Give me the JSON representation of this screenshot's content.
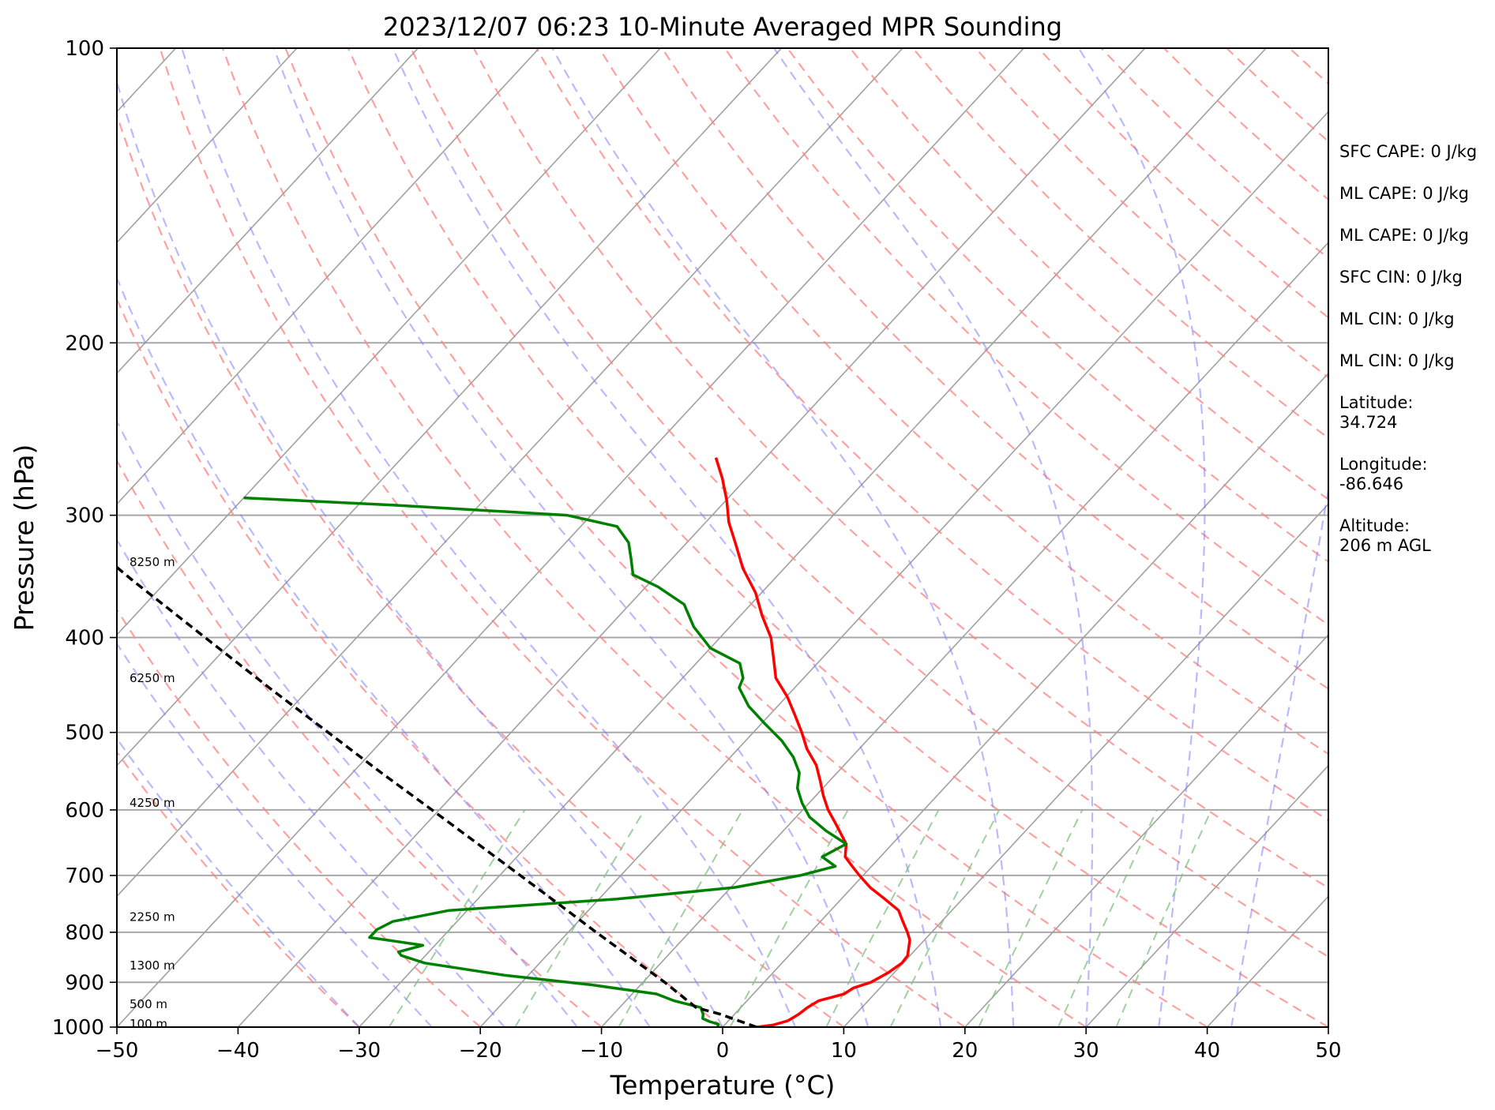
{
  "chart_data": {
    "type": "line",
    "title": "2023/12/07 06:23 10-Minute Averaged MPR Sounding",
    "xlabel": "Temperature (°C)",
    "ylabel": "Pressure (hPa)",
    "xlim": [
      -50,
      50
    ],
    "ylim": [
      1000,
      100
    ],
    "yscale": "log",
    "skew": "skew-T log-P (isotherms slanted to the right)",
    "x_ticks": [
      -50,
      -40,
      -30,
      -20,
      -10,
      0,
      10,
      20,
      30,
      40,
      50
    ],
    "x_tick_labels": [
      "−50",
      "−40",
      "−30",
      "−20",
      "−10",
      "0",
      "10",
      "20",
      "30",
      "40",
      "50"
    ],
    "y_ticks": [
      1000,
      900,
      800,
      700,
      600,
      500,
      400,
      300,
      200,
      100
    ],
    "y_tick_labels": [
      "1000",
      "900",
      "800",
      "700",
      "600",
      "500",
      "400",
      "300",
      "200",
      "100"
    ],
    "grid": true,
    "series": [
      {
        "role": "temperature",
        "color": "#ff0000",
        "points": [
          {
            "p": 1000,
            "t": 2.8
          },
          {
            "p": 995,
            "t": 4.0
          },
          {
            "p": 985,
            "t": 4.9
          },
          {
            "p": 970,
            "t": 5.3
          },
          {
            "p": 955,
            "t": 5.5
          },
          {
            "p": 940,
            "t": 5.9
          },
          {
            "p": 925,
            "t": 7.5
          },
          {
            "p": 912,
            "t": 7.8
          },
          {
            "p": 900,
            "t": 8.8
          },
          {
            "p": 880,
            "t": 9.5
          },
          {
            "p": 860,
            "t": 9.9
          },
          {
            "p": 845,
            "t": 9.8
          },
          {
            "p": 830,
            "t": 9.3
          },
          {
            "p": 815,
            "t": 8.8
          },
          {
            "p": 800,
            "t": 8.0
          },
          {
            "p": 780,
            "t": 6.8
          },
          {
            "p": 760,
            "t": 5.6
          },
          {
            "p": 740,
            "t": 3.6
          },
          {
            "p": 720,
            "t": 1.5
          },
          {
            "p": 700,
            "t": -0.3
          },
          {
            "p": 685,
            "t": -1.6
          },
          {
            "p": 670,
            "t": -2.9
          },
          {
            "p": 650,
            "t": -3.8
          },
          {
            "p": 620,
            "t": -6.2
          },
          {
            "p": 600,
            "t": -7.9
          },
          {
            "p": 580,
            "t": -9.4
          },
          {
            "p": 560,
            "t": -10.8
          },
          {
            "p": 540,
            "t": -12.3
          },
          {
            "p": 520,
            "t": -14.3
          },
          {
            "p": 500,
            "t": -16.0
          },
          {
            "p": 480,
            "t": -17.9
          },
          {
            "p": 460,
            "t": -19.9
          },
          {
            "p": 440,
            "t": -22.3
          },
          {
            "p": 420,
            "t": -24.0
          },
          {
            "p": 400,
            "t": -25.8
          },
          {
            "p": 380,
            "t": -28.2
          },
          {
            "p": 360,
            "t": -30.5
          },
          {
            "p": 340,
            "t": -33.4
          },
          {
            "p": 320,
            "t": -36.0
          },
          {
            "p": 305,
            "t": -38.1
          },
          {
            "p": 290,
            "t": -39.9
          },
          {
            "p": 275,
            "t": -42.0
          },
          {
            "p": 262,
            "t": -44.1
          }
        ]
      },
      {
        "role": "dewpoint",
        "color": "#008000",
        "points": [
          {
            "p": 1000,
            "t": -0.4
          },
          {
            "p": 993,
            "t": -0.6
          },
          {
            "p": 987,
            "t": -1.5
          },
          {
            "p": 980,
            "t": -2.3
          },
          {
            "p": 970,
            "t": -2.6
          },
          {
            "p": 955,
            "t": -3.3
          },
          {
            "p": 940,
            "t": -6.0
          },
          {
            "p": 925,
            "t": -8.0
          },
          {
            "p": 905,
            "t": -14.2
          },
          {
            "p": 885,
            "t": -22.0
          },
          {
            "p": 860,
            "t": -29.5
          },
          {
            "p": 845,
            "t": -32.0
          },
          {
            "p": 838,
            "t": -32.5
          },
          {
            "p": 825,
            "t": -31.0
          },
          {
            "p": 810,
            "t": -36.0
          },
          {
            "p": 795,
            "t": -36.0
          },
          {
            "p": 780,
            "t": -35.3
          },
          {
            "p": 760,
            "t": -31.5
          },
          {
            "p": 740,
            "t": -18.5
          },
          {
            "p": 720,
            "t": -9.7
          },
          {
            "p": 700,
            "t": -5.2
          },
          {
            "p": 685,
            "t": -3.0
          },
          {
            "p": 670,
            "t": -4.8
          },
          {
            "p": 650,
            "t": -3.8
          },
          {
            "p": 630,
            "t": -6.5
          },
          {
            "p": 610,
            "t": -8.9
          },
          {
            "p": 590,
            "t": -10.6
          },
          {
            "p": 570,
            "t": -12.1
          },
          {
            "p": 550,
            "t": -13.1
          },
          {
            "p": 530,
            "t": -14.8
          },
          {
            "p": 510,
            "t": -17.0
          },
          {
            "p": 490,
            "t": -19.7
          },
          {
            "p": 470,
            "t": -22.4
          },
          {
            "p": 450,
            "t": -24.6
          },
          {
            "p": 440,
            "t": -25.0
          },
          {
            "p": 425,
            "t": -26.4
          },
          {
            "p": 410,
            "t": -30.0
          },
          {
            "p": 390,
            "t": -33.0
          },
          {
            "p": 370,
            "t": -35.5
          },
          {
            "p": 355,
            "t": -39.0
          },
          {
            "p": 345,
            "t": -42.0
          },
          {
            "p": 333,
            "t": -43.3
          },
          {
            "p": 320,
            "t": -44.8
          },
          {
            "p": 308,
            "t": -47.0
          },
          {
            "p": 300,
            "t": -52.0
          },
          {
            "p": 293,
            "t": -67.0
          },
          {
            "p": 288,
            "t": -80.0
          }
        ]
      },
      {
        "role": "parcel",
        "color": "#000000",
        "points": [
          {
            "p": 1000,
            "t": 2.8
          },
          {
            "p": 970,
            "t": -1.2
          },
          {
            "p": 955,
            "t": -3.7
          },
          {
            "p": 900,
            "t": -8.2
          },
          {
            "p": 850,
            "t": -12.8
          },
          {
            "p": 800,
            "t": -17.7
          },
          {
            "p": 750,
            "t": -22.8
          },
          {
            "p": 700,
            "t": -28.3
          },
          {
            "p": 650,
            "t": -34.2
          },
          {
            "p": 600,
            "t": -40.6
          },
          {
            "p": 550,
            "t": -47.6
          },
          {
            "p": 500,
            "t": -55.1
          },
          {
            "p": 450,
            "t": -63.4
          },
          {
            "p": 400,
            "t": -72.5
          },
          {
            "p": 350,
            "t": -82.8
          },
          {
            "p": 300,
            "t": -94.3
          },
          {
            "p": 276,
            "t": -100.5
          }
        ]
      }
    ],
    "height_labels": [
      {
        "text": "100 m",
        "p": 993
      },
      {
        "text": "500 m",
        "p": 948
      },
      {
        "text": "1300 m",
        "p": 865
      },
      {
        "text": "2250 m",
        "p": 772
      },
      {
        "text": "4250 m",
        "p": 590
      },
      {
        "text": "6250 m",
        "p": 440
      },
      {
        "text": "8250 m",
        "p": 335
      }
    ],
    "reference_lines": {
      "isotherm_color": "#a0a0a0",
      "dry_adiabat_color": "#ff8080",
      "moist_adiabat_color": "#8080ff",
      "mixing_ratio_color": "#80c080"
    }
  },
  "side_panel": {
    "sfc_cape": "SFC CAPE: 0 J/kg",
    "ml_cape_1": "ML CAPE: 0 J/kg",
    "ml_cape_2": "ML CAPE: 0 J/kg",
    "sfc_cin": "SFC CIN: 0 J/kg",
    "ml_cin_1": "ML CIN: 0 J/kg",
    "ml_cin_2": "ML CIN: 0 J/kg",
    "latitude": "Latitude:\n34.724",
    "longitude": "Longitude:\n-86.646",
    "altitude": "Altitude:\n206 m AGL"
  }
}
